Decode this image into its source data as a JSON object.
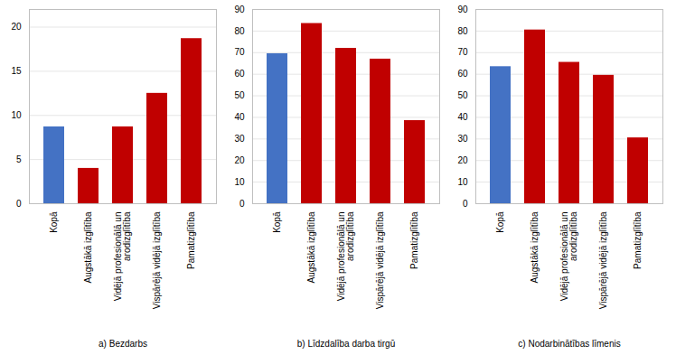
{
  "chart_data": [
    {
      "type": "bar",
      "xlabel": "a) Bezdarbs",
      "categories": [
        "Kopā",
        "Augstākā izglītība",
        "Vidējā profesionālā un\narodizglītība",
        "Vispārējā vidējā izglītība",
        "Pamatizglītība"
      ],
      "values": [
        8.7,
        4.0,
        8.7,
        12.5,
        18.7
      ],
      "colors": [
        "#4472C4",
        "#C00000",
        "#C00000",
        "#C00000",
        "#C00000"
      ],
      "ylim": [
        0,
        22
      ],
      "yticks": [
        0,
        5,
        10,
        15,
        20
      ],
      "grid": true
    },
    {
      "type": "bar",
      "xlabel": "b) Līdzdalība darba tirgū",
      "categories": [
        "Kopā",
        "Augstākā izglītība",
        "Vidējā profesionālā un\narodizglītība",
        "Vispārējā vidējā izglītība",
        "Pamatizglītība"
      ],
      "values": [
        69.5,
        83.5,
        72.0,
        67.0,
        38.5
      ],
      "colors": [
        "#4472C4",
        "#C00000",
        "#C00000",
        "#C00000",
        "#C00000"
      ],
      "ylim": [
        0,
        90
      ],
      "yticks": [
        0,
        10,
        20,
        30,
        40,
        50,
        60,
        70,
        80,
        90
      ],
      "grid": true
    },
    {
      "type": "bar",
      "xlabel": "c) Nodarbinātības līmenis",
      "categories": [
        "Kopā",
        "Augstākā izglītība",
        "Vidējā profesionālā un\narodizglītība",
        "Vispārējā vidējā izglītība",
        "Pamatizglītība"
      ],
      "values": [
        63.5,
        80.5,
        65.5,
        59.5,
        30.5
      ],
      "colors": [
        "#4472C4",
        "#C00000",
        "#C00000",
        "#C00000",
        "#C00000"
      ],
      "ylim": [
        0,
        90
      ],
      "yticks": [
        0,
        10,
        20,
        30,
        40,
        50,
        60,
        70,
        80,
        90
      ],
      "grid": true
    }
  ]
}
